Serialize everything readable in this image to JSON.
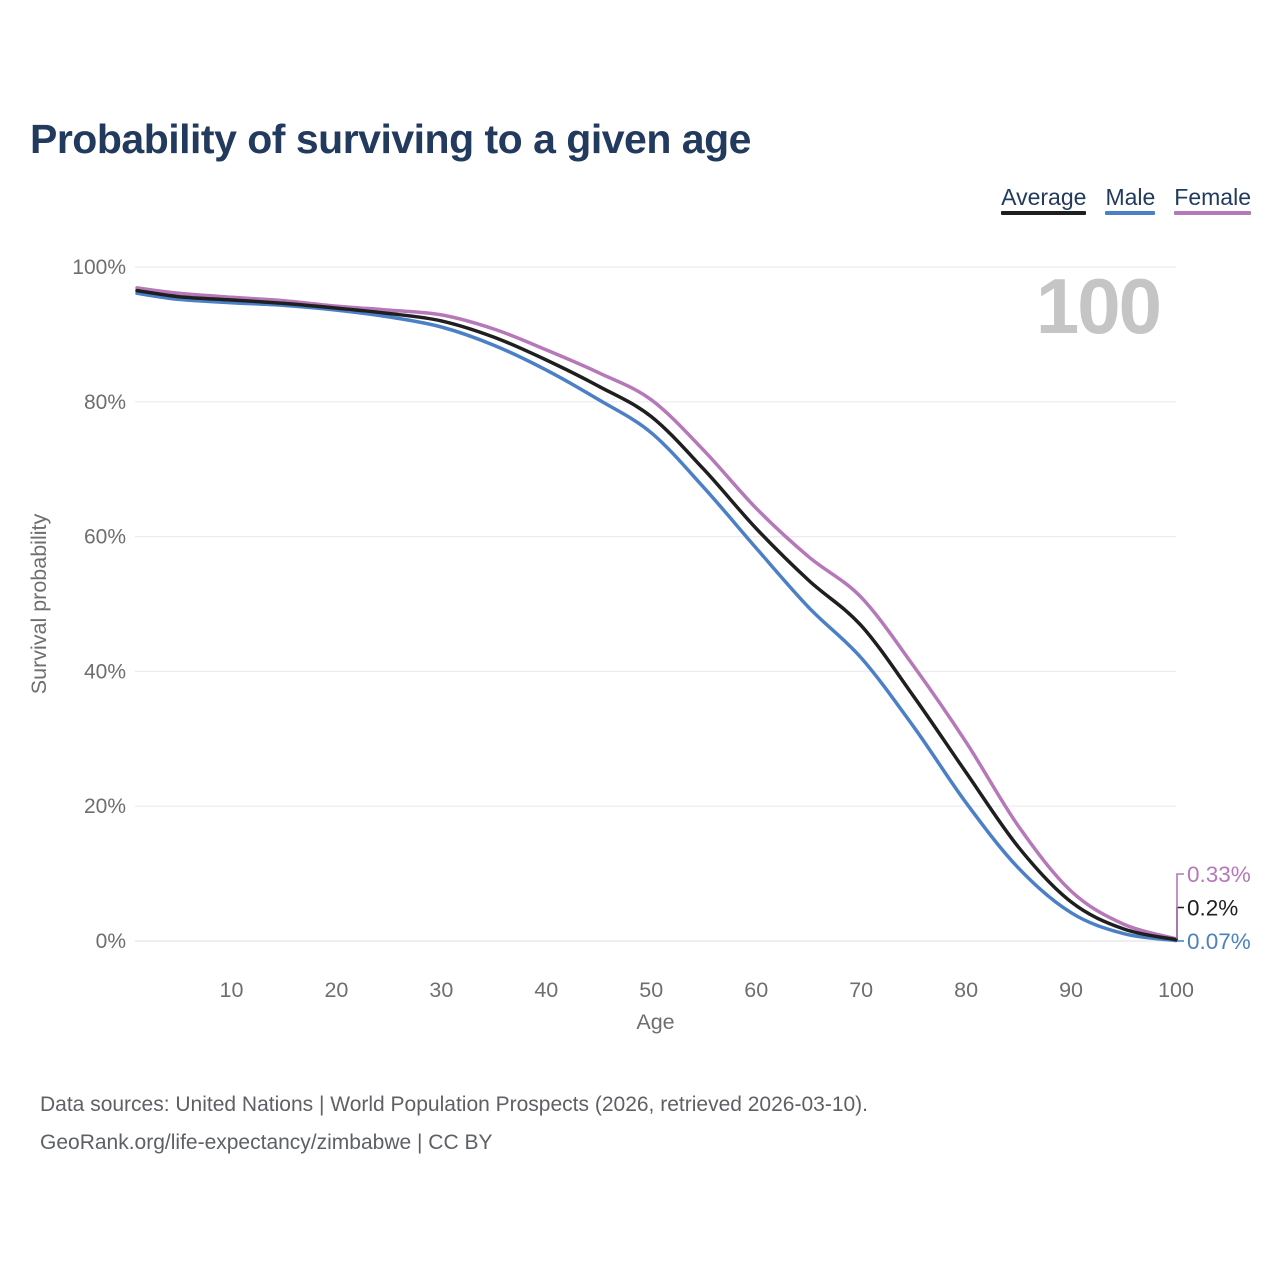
{
  "header": {
    "title": "Probability of surviving to a given age"
  },
  "legend": {
    "items": [
      {
        "label": "Average",
        "color": "#1f1f1f"
      },
      {
        "label": "Male",
        "color": "#4c80c6"
      },
      {
        "label": "Female",
        "color": "#b678b8"
      }
    ]
  },
  "footer": {
    "line1": "Data sources: United Nations | World Population Prospects (2026, retrieved 2026-03-10).",
    "line2": "GeoRank.org/life-expectancy/zimbabwe | CC BY"
  },
  "chart_data": {
    "type": "line",
    "title": "Probability of surviving to a given age",
    "xlabel": "Age",
    "ylabel": "Survival probability",
    "age_annotation": "100",
    "x": [
      1,
      5,
      10,
      15,
      20,
      25,
      30,
      35,
      40,
      45,
      50,
      55,
      60,
      65,
      70,
      75,
      80,
      85,
      90,
      95,
      100
    ],
    "series": [
      {
        "name": "Average",
        "color": "#1f1f1f",
        "end_label": "0.2%",
        "values": [
          96.5,
          95.6,
          95.1,
          94.6,
          93.9,
          93.1,
          92.0,
          89.6,
          86.2,
          82.3,
          77.8,
          70.0,
          61.2,
          53.5,
          46.8,
          36.3,
          25.0,
          13.9,
          5.8,
          1.8,
          0.2
        ]
      },
      {
        "name": "Male",
        "color": "#4c80c6",
        "end_label": "0.07%",
        "values": [
          96.1,
          95.2,
          94.7,
          94.3,
          93.6,
          92.6,
          91.1,
          88.4,
          84.7,
          80.3,
          75.4,
          67.3,
          58.3,
          49.5,
          42.0,
          31.8,
          20.5,
          10.8,
          4.2,
          1.1,
          0.07
        ]
      },
      {
        "name": "Female",
        "color": "#b678b8",
        "end_label": "0.33%",
        "values": [
          96.9,
          96.1,
          95.5,
          95.0,
          94.2,
          93.6,
          92.9,
          90.8,
          87.7,
          84.3,
          80.3,
          72.8,
          64.2,
          57.0,
          51.0,
          40.8,
          29.5,
          17.0,
          7.4,
          2.5,
          0.33
        ]
      }
    ],
    "xlim": [
      1,
      100
    ],
    "ylim": [
      0,
      100
    ],
    "xticks": [
      10,
      20,
      30,
      40,
      50,
      60,
      70,
      80,
      90,
      100
    ],
    "yticks": [
      {
        "value": 0,
        "label": "0%"
      },
      {
        "value": 20,
        "label": "20%"
      },
      {
        "value": 40,
        "label": "40%"
      },
      {
        "value": 60,
        "label": "60%"
      },
      {
        "value": 80,
        "label": "80%"
      },
      {
        "value": 100,
        "label": "100%"
      }
    ],
    "grid": "horizontal",
    "legend_position": "top-right"
  }
}
